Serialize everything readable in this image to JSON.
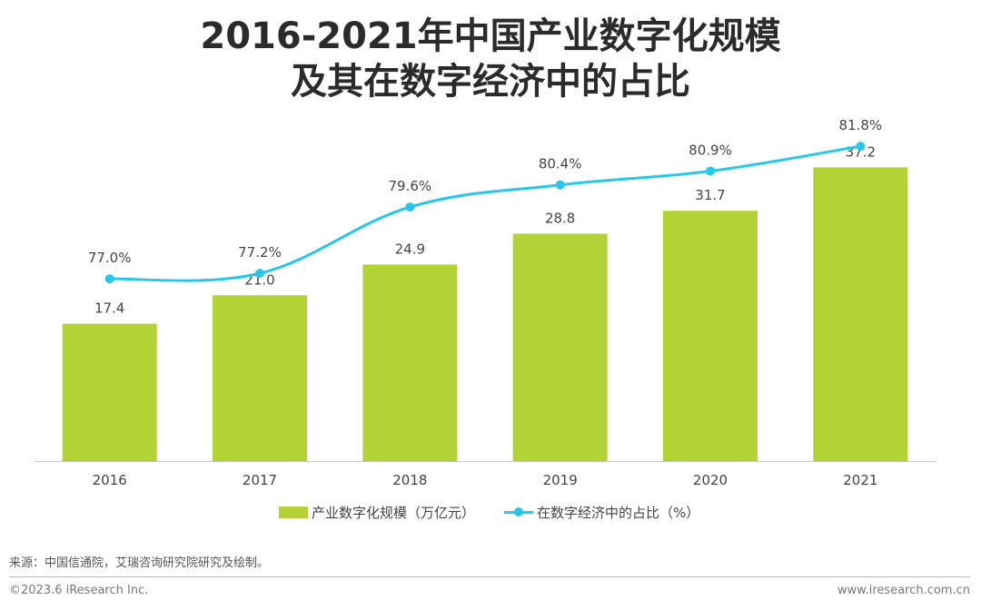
{
  "title_line1": "2016-2021年中国产业数字化规模",
  "title_line2": "及其在数字经济中的占比",
  "chart_data": {
    "type": "bar",
    "categories": [
      "2016",
      "2017",
      "2018",
      "2019",
      "2020",
      "2021"
    ],
    "series": [
      {
        "name": "产业数字化规模（万亿元）",
        "type": "bar",
        "color": "#b2d235",
        "values": [
          17.4,
          21.0,
          24.9,
          28.8,
          31.7,
          37.2
        ],
        "labels": [
          "17.4",
          "21.0",
          "24.9",
          "28.8",
          "31.7",
          "37.2"
        ]
      },
      {
        "name": "在数字经济中的占比（%）",
        "type": "line",
        "color": "#28c6ea",
        "values": [
          77.0,
          77.2,
          79.6,
          80.4,
          80.9,
          81.8
        ],
        "labels": [
          "77.0%",
          "77.2%",
          "79.6%",
          "80.4%",
          "80.9%",
          "81.8%"
        ]
      }
    ],
    "title": "2016-2021年中国产业数字化规模及其在数字经济中的占比",
    "xlabel": "",
    "ylabel": "",
    "ylim_bar": [
      0,
      40
    ],
    "ylim_line": [
      73,
      82
    ],
    "grid": false,
    "legend": "bottom-center"
  },
  "legend": {
    "bar_label": "产业数字化规模（万亿元）",
    "line_label": "在数字经济中的占比（%）"
  },
  "footer": {
    "source": "来源：中国信通院，艾瑞咨询研究院研究及绘制。",
    "copyright": "©2023.6 iResearch Inc.",
    "website": "www.iresearch.com.cn"
  }
}
